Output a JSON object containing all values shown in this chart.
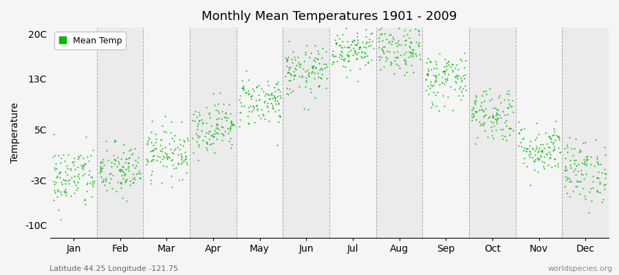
{
  "title": "Monthly Mean Temperatures 1901 - 2009",
  "ylabel": "Temperature",
  "xlabel_labels": [
    "Jan",
    "Feb",
    "Mar",
    "Apr",
    "May",
    "Jun",
    "Jul",
    "Aug",
    "Sep",
    "Oct",
    "Nov",
    "Dec"
  ],
  "ytick_labels": [
    "-10C",
    "-3C",
    "5C",
    "13C",
    "20C"
  ],
  "ytick_values": [
    -10,
    -3,
    5,
    13,
    20
  ],
  "ylim": [
    -12,
    21
  ],
  "dot_color": "#00bb00",
  "dot_size": 2,
  "legend_label": "Mean Temp",
  "footer_left": "Latitude 44.25 Longitude -121.75",
  "footer_right": "worldspecies.org",
  "background_color": "#f5f5f5",
  "plot_bg_odd": "#ebebeb",
  "plot_bg_even": "#f5f5f5",
  "monthly_means": [
    -2.5,
    -1.5,
    1.5,
    5.5,
    9.5,
    14.0,
    17.8,
    17.5,
    13.0,
    7.5,
    2.0,
    -1.5
  ],
  "monthly_stds": [
    2.5,
    2.2,
    2.0,
    2.0,
    2.0,
    2.0,
    1.8,
    2.0,
    2.2,
    2.2,
    2.0,
    2.5
  ],
  "n_years": 109,
  "grid_color": "#888888",
  "vline_positions": [
    1,
    2,
    3,
    4,
    5,
    6,
    7,
    8,
    9,
    10,
    11
  ]
}
